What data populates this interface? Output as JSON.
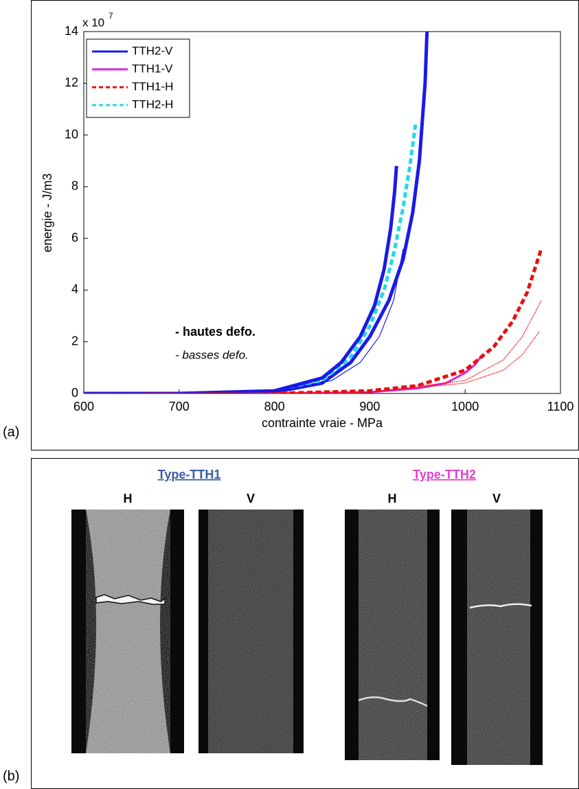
{
  "chart_data": {
    "type": "line",
    "panel_label": "(a)",
    "x_label": "contrainte vraie - MPa",
    "y_label": "energie - J/m3",
    "y_multiplier_base": "x 10",
    "y_multiplier_exponent": "7",
    "xlim": [
      600,
      1100
    ],
    "xticks": [
      600,
      700,
      800,
      900,
      1000,
      1100
    ],
    "ylim": [
      0,
      14
    ],
    "yticks": [
      0,
      2,
      4,
      6,
      8,
      10,
      12,
      14
    ],
    "legend_position": "upper left",
    "annotations": [
      "- hautes defo.",
      "- basses defo."
    ],
    "series": [
      {
        "name": "TTH2-V",
        "color": "#1a1ae6",
        "dash": false,
        "line_width": 5,
        "legend": true,
        "x": [
          600,
          700,
          800,
          850,
          880,
          900,
          920,
          935,
          945,
          952,
          958,
          960
        ],
        "values": [
          0,
          0,
          0.05,
          0.4,
          1.2,
          2.2,
          3.6,
          5.2,
          7,
          9,
          12,
          14
        ]
      },
      {
        "name": "TTH1-V",
        "color": "#e020e0",
        "dash": false,
        "line_width": 3,
        "legend": true,
        "x": [
          600,
          800,
          900,
          950,
          980,
          1000,
          1010,
          1018
        ],
        "values": [
          0,
          0,
          0.05,
          0.2,
          0.4,
          0.8,
          1.1,
          1.5
        ]
      },
      {
        "name": "TTH1-H",
        "color": "#e81010",
        "dash": true,
        "line_width": 5,
        "legend": true,
        "x": [
          600,
          800,
          900,
          950,
          1000,
          1030,
          1050,
          1065,
          1080
        ],
        "values": [
          0,
          0,
          0.1,
          0.3,
          0.9,
          1.8,
          2.8,
          3.9,
          5.6
        ]
      },
      {
        "name": "TTH2-H",
        "color": "#22d8e8",
        "dash": true,
        "line_width": 5,
        "legend": true,
        "x": [
          600,
          700,
          800,
          850,
          880,
          900,
          915,
          925,
          935,
          942,
          948
        ],
        "values": [
          0,
          0,
          0.1,
          0.5,
          1.4,
          2.6,
          4,
          5.4,
          7.2,
          8.8,
          10.4
        ]
      },
      {
        "name": "TTH2-V",
        "color": "#1a1ae6",
        "dash": false,
        "line_width": 5,
        "legend": false,
        "x": [
          600,
          700,
          800,
          850,
          870,
          890,
          905,
          915,
          922,
          926,
          928
        ],
        "values": [
          0,
          0,
          0.1,
          0.6,
          1.2,
          2.2,
          3.4,
          4.8,
          6.4,
          7.8,
          8.8
        ]
      },
      {
        "name": "TTH2-V",
        "color": "#1a1ae6",
        "dash": false,
        "line_width": 1.2,
        "legend": false,
        "x": [
          600,
          800,
          860,
          890,
          910,
          925,
          935
        ],
        "values": [
          0,
          0.05,
          0.5,
          1.2,
          2.2,
          3.6,
          5.6
        ]
      },
      {
        "name": "TTH1-H",
        "color": "#e81010",
        "dash": true,
        "line_width": 1.2,
        "legend": false,
        "x": [
          600,
          900,
          1000,
          1040,
          1060,
          1080
        ],
        "values": [
          0,
          0.05,
          0.5,
          1.3,
          2.2,
          3.6
        ]
      },
      {
        "name": "TTH1-H",
        "color": "#e81010",
        "dash": true,
        "line_width": 1.2,
        "legend": false,
        "x": [
          600,
          900,
          1000,
          1040,
          1060,
          1078
        ],
        "values": [
          0,
          0.05,
          0.4,
          0.9,
          1.5,
          2.4
        ]
      }
    ]
  },
  "photos": {
    "panel_label": "(b)",
    "groups": [
      {
        "title": "Type-TTH1",
        "labels": [
          "H",
          "V"
        ]
      },
      {
        "title": "Type-TTH2",
        "labels": [
          "H",
          "V"
        ]
      }
    ]
  }
}
